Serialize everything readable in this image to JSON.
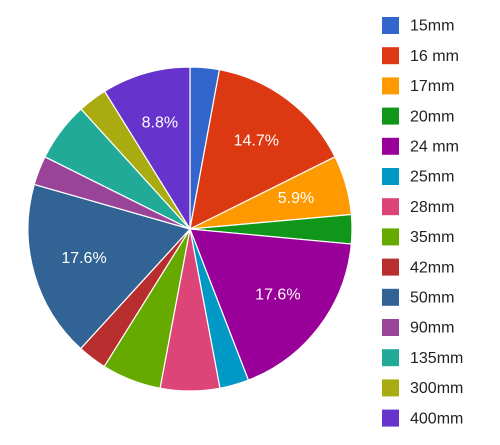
{
  "chart_data": {
    "type": "pie",
    "title": "",
    "legend_position": "right",
    "series": [
      {
        "name": "15mm",
        "value": 2.9,
        "color": "#3366cc",
        "label": ""
      },
      {
        "name": "16 mm",
        "value": 14.7,
        "color": "#dc3912",
        "label": "14.7%"
      },
      {
        "name": "17mm",
        "value": 5.9,
        "color": "#ff9900",
        "label": "5.9%"
      },
      {
        "name": "20mm",
        "value": 2.9,
        "color": "#109618",
        "label": ""
      },
      {
        "name": "24 mm",
        "value": 17.6,
        "color": "#990099",
        "label": "17.6%"
      },
      {
        "name": "25mm",
        "value": 2.9,
        "color": "#0099c6",
        "label": ""
      },
      {
        "name": "28mm",
        "value": 5.9,
        "color": "#dd4477",
        "label": ""
      },
      {
        "name": "35mm",
        "value": 5.9,
        "color": "#66aa00",
        "label": ""
      },
      {
        "name": "42mm",
        "value": 2.9,
        "color": "#b82e2e",
        "label": ""
      },
      {
        "name": "50mm",
        "value": 17.6,
        "color": "#316395",
        "label": "17.6%"
      },
      {
        "name": "90mm",
        "value": 2.9,
        "color": "#994499",
        "label": ""
      },
      {
        "name": "135mm",
        "value": 5.9,
        "color": "#22aa99",
        "label": ""
      },
      {
        "name": "300mm",
        "value": 2.9,
        "color": "#aaaa11",
        "label": ""
      },
      {
        "name": "400mm",
        "value": 8.8,
        "color": "#6633cc",
        "label": "8.8%"
      }
    ]
  }
}
